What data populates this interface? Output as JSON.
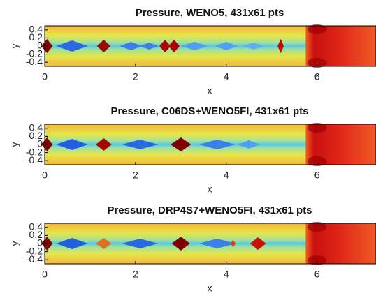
{
  "chart_data": [
    {
      "type": "heatmap",
      "title": "Pressure, WENO5, 431x61 pts",
      "xlabel": "x",
      "ylabel": "y",
      "xlim": [
        0,
        7.3
      ],
      "ylim": [
        -0.5,
        0.5
      ],
      "xticks": [
        0,
        2,
        4,
        6
      ],
      "yticks": [
        0.4,
        0.2,
        0,
        -0.2,
        -0.4
      ]
    },
    {
      "type": "heatmap",
      "title": "Pressure, C06DS+WENO5FI, 431x61 pts",
      "xlabel": "x",
      "ylabel": "y",
      "xlim": [
        0,
        7.3
      ],
      "ylim": [
        -0.5,
        0.5
      ],
      "xticks": [
        0,
        2,
        4,
        6
      ],
      "yticks": [
        0.4,
        0.2,
        0,
        -0.2,
        -0.4
      ]
    },
    {
      "type": "heatmap",
      "title": "Pressure, DRP4S7+WENO5FI, 431x61 pts",
      "xlabel": "x",
      "ylabel": "y",
      "xlim": [
        0,
        7.3
      ],
      "ylim": [
        -0.5,
        0.5
      ],
      "xticks": [
        0,
        2,
        4,
        6
      ],
      "yticks": [
        0.4,
        0.2,
        0,
        -0.2,
        -0.4
      ]
    }
  ]
}
